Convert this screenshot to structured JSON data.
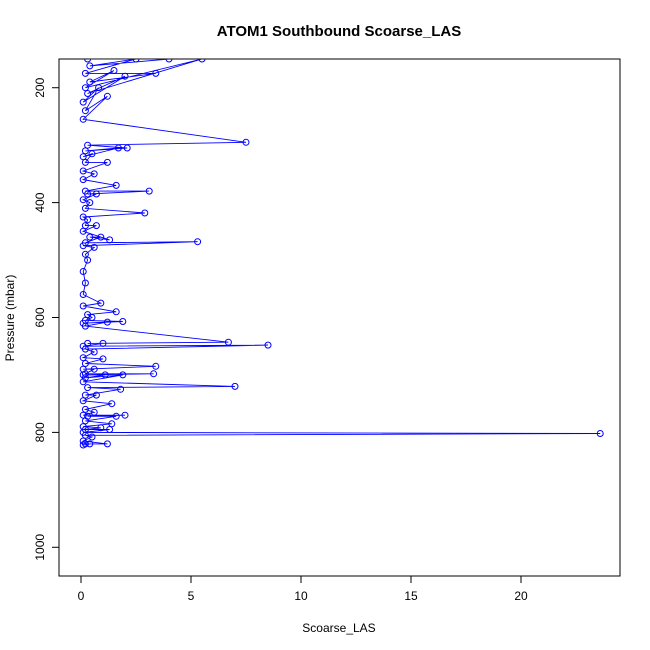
{
  "chart_data": {
    "type": "line",
    "title": "ATOM1 Southbound Scoarse_LAS",
    "xlabel": "Scoarse_LAS",
    "ylabel": "Pressure (mbar)",
    "xlim": [
      -1,
      24.5
    ],
    "ylim": [
      1050,
      150
    ],
    "y_reversed": true,
    "x_ticks": [
      0,
      5,
      10,
      15,
      20
    ],
    "x_tick_labels": [
      "0",
      "5",
      "10",
      "15",
      "20"
    ],
    "y_ticks": [
      200,
      400,
      600,
      800,
      1000
    ],
    "y_tick_labels": [
      "200",
      "400",
      "600",
      "800",
      "1000"
    ],
    "series_color": "#0000ff",
    "series": [
      {
        "points": [
          [
            0.3,
            150
          ],
          [
            4.0,
            150
          ],
          [
            0.4,
            162
          ],
          [
            2.5,
            150
          ],
          [
            0.2,
            175
          ],
          [
            3.4,
            175
          ],
          [
            0.4,
            190
          ],
          [
            1.5,
            170
          ],
          [
            0.2,
            200
          ],
          [
            5.5,
            150
          ],
          [
            0.3,
            210
          ],
          [
            2.0,
            180
          ],
          [
            0.1,
            225
          ],
          [
            0.8,
            200
          ],
          [
            0.2,
            240
          ],
          [
            1.2,
            215
          ],
          [
            0.1,
            255
          ],
          [
            7.5,
            295
          ],
          [
            0.3,
            300
          ],
          [
            2.1,
            305
          ],
          [
            0.2,
            310
          ],
          [
            1.7,
            305
          ],
          [
            0.1,
            320
          ],
          [
            0.5,
            315
          ],
          [
            0.2,
            330
          ],
          [
            1.2,
            330
          ],
          [
            0.1,
            345
          ],
          [
            0.6,
            350
          ],
          [
            0.1,
            360
          ],
          [
            1.6,
            370
          ],
          [
            0.2,
            380
          ],
          [
            3.1,
            380
          ],
          [
            0.3,
            385
          ],
          [
            0.7,
            385
          ],
          [
            0.1,
            395
          ],
          [
            0.4,
            400
          ],
          [
            0.2,
            410
          ],
          [
            2.9,
            418
          ],
          [
            0.1,
            425
          ],
          [
            0.3,
            430
          ],
          [
            0.2,
            440
          ],
          [
            0.7,
            440
          ],
          [
            0.1,
            450
          ],
          [
            1.3,
            465
          ],
          [
            0.4,
            460
          ],
          [
            0.9,
            460
          ],
          [
            0.2,
            470
          ],
          [
            5.3,
            468
          ],
          [
            0.1,
            475
          ],
          [
            0.6,
            478
          ],
          [
            0.2,
            490
          ],
          [
            0.3,
            500
          ],
          [
            0.1,
            520
          ],
          [
            0.2,
            540
          ],
          [
            0.1,
            560
          ],
          [
            0.9,
            575
          ],
          [
            0.1,
            580
          ],
          [
            1.6,
            590
          ],
          [
            0.3,
            595
          ],
          [
            0.5,
            600
          ],
          [
            0.2,
            605
          ],
          [
            1.9,
            607
          ],
          [
            0.1,
            610
          ],
          [
            1.2,
            608
          ],
          [
            0.2,
            615
          ],
          [
            6.7,
            643
          ],
          [
            0.3,
            645
          ],
          [
            1.0,
            645
          ],
          [
            0.1,
            650
          ],
          [
            8.5,
            648
          ],
          [
            0.2,
            655
          ],
          [
            0.6,
            660
          ],
          [
            0.1,
            670
          ],
          [
            1.0,
            672
          ],
          [
            0.2,
            680
          ],
          [
            3.4,
            685
          ],
          [
            0.1,
            690
          ],
          [
            0.6,
            690
          ],
          [
            0.2,
            698
          ],
          [
            3.3,
            698
          ],
          [
            0.1,
            700
          ],
          [
            1.1,
            700
          ],
          [
            0.2,
            705
          ],
          [
            1.9,
            700
          ],
          [
            0.1,
            712
          ],
          [
            7.0,
            720
          ],
          [
            0.3,
            722
          ],
          [
            1.8,
            725
          ],
          [
            0.2,
            735
          ],
          [
            0.7,
            735
          ],
          [
            0.1,
            745
          ],
          [
            1.4,
            750
          ],
          [
            0.2,
            760
          ],
          [
            0.6,
            765
          ],
          [
            0.1,
            770
          ],
          [
            2.0,
            770
          ],
          [
            0.3,
            772
          ],
          [
            1.6,
            772
          ],
          [
            0.2,
            780
          ],
          [
            1.4,
            785
          ],
          [
            0.1,
            790
          ],
          [
            0.9,
            792
          ],
          [
            0.2,
            795
          ],
          [
            1.3,
            795
          ],
          [
            0.1,
            800
          ],
          [
            23.6,
            802
          ],
          [
            0.2,
            805
          ],
          [
            0.5,
            808
          ],
          [
            0.1,
            815
          ],
          [
            1.2,
            820
          ],
          [
            0.2,
            820
          ],
          [
            0.4,
            820
          ],
          [
            0.1,
            822
          ]
        ]
      }
    ]
  }
}
